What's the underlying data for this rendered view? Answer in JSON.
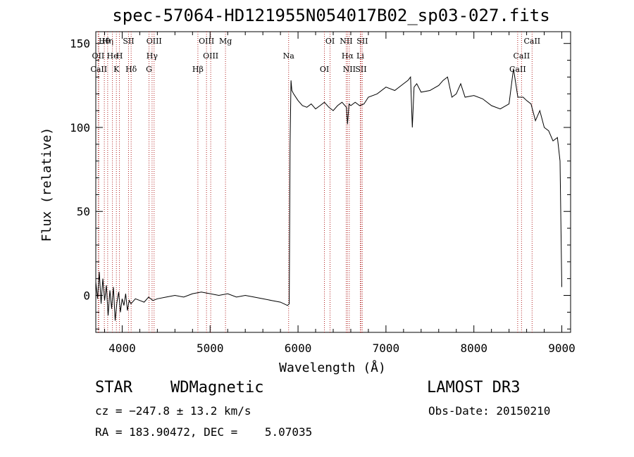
{
  "chart_data": {
    "type": "line",
    "title": "spec-57064-HD121955N054017B02_sp03-027.fits",
    "xlabel": "Wavelength (Å)",
    "ylabel": "Flux (relative)",
    "xlim": [
      3700,
      9100
    ],
    "ylim": [
      -22,
      157
    ],
    "x_ticks": [
      4000,
      5000,
      6000,
      7000,
      8000,
      9000
    ],
    "y_ticks": [
      0,
      50,
      100,
      150
    ],
    "grid": false,
    "series": [
      {
        "x": [
          3700,
          3720,
          3740,
          3760,
          3780,
          3800,
          3820,
          3840,
          3860,
          3880,
          3900,
          3920,
          3940,
          3960,
          3980,
          4000,
          4020,
          4040,
          4060,
          4080,
          4100,
          4150,
          4200,
          4250,
          4300,
          4350,
          4400,
          4500,
          4600,
          4700,
          4800,
          4900,
          5000,
          5100,
          5200,
          5300,
          5400,
          5500,
          5600,
          5700,
          5800,
          5880,
          5900,
          5910,
          5920,
          5930,
          5950,
          6000,
          6050,
          6100,
          6150,
          6200,
          6250,
          6300,
          6350,
          6400,
          6450,
          6500,
          6550,
          6563,
          6580,
          6600,
          6650,
          6700,
          6750,
          6800,
          6900,
          7000,
          7100,
          7200,
          7250,
          7280,
          7300,
          7320,
          7350,
          7400,
          7500,
          7600,
          7650,
          7700,
          7750,
          7800,
          7850,
          7900,
          8000,
          8100,
          8200,
          8300,
          8400,
          8450,
          8500,
          8540,
          8560,
          8600,
          8650,
          8700,
          8750,
          8800,
          8850,
          8900,
          8950,
          8980,
          9000
        ],
        "y": [
          8,
          -2,
          14,
          -5,
          10,
          -3,
          6,
          -12,
          3,
          -8,
          5,
          -15,
          -4,
          2,
          -10,
          -2,
          -6,
          1,
          -9,
          -3,
          -5,
          -2,
          -3,
          -4,
          -1,
          -3,
          -2,
          -1,
          0,
          -1,
          1,
          2,
          1,
          0,
          1,
          -1,
          0,
          -1,
          -2,
          -3,
          -4,
          -6,
          -5,
          90,
          128,
          122,
          120,
          116,
          113,
          112,
          114,
          111,
          113,
          115,
          112,
          110,
          113,
          115,
          112,
          102,
          114,
          113,
          115,
          113,
          114,
          118,
          120,
          124,
          122,
          126,
          128,
          130,
          100,
          124,
          126,
          121,
          122,
          125,
          128,
          130,
          118,
          120,
          126,
          118,
          119,
          117,
          113,
          111,
          114,
          135,
          118,
          118,
          118,
          116,
          114,
          104,
          110,
          100,
          98,
          92,
          94,
          80,
          5
        ],
        "color": "#000000"
      }
    ],
    "lines": [
      {
        "label": "Hθ",
        "x": 3797
      },
      {
        "label": "OII",
        "x": 3727
      },
      {
        "label": "CaII",
        "x": 3734
      },
      {
        "label": "Hη",
        "x": 3835
      },
      {
        "label": "He",
        "x": 3889
      },
      {
        "label": "K",
        "x": 3934
      },
      {
        "label": "SII",
        "x": 4072
      },
      {
        "label": "H",
        "x": 3969
      },
      {
        "label": "Hδ",
        "x": 4102
      },
      {
        "label": "OIII",
        "x": 4363
      },
      {
        "label": "Hγ",
        "x": 4340
      },
      {
        "label": "G",
        "x": 4305
      },
      {
        "label": "OIII",
        "x": 4959
      },
      {
        "label": "OIII",
        "x": 5007
      },
      {
        "label": "Hβ",
        "x": 4861
      },
      {
        "label": "Mg",
        "x": 5175
      },
      {
        "label": "Na",
        "x": 5893
      },
      {
        "label": "OI",
        "x": 6300
      },
      {
        "label": "OI",
        "x": 6364
      },
      {
        "label": "Hα",
        "x": 6563
      },
      {
        "label": "SII",
        "x": 6716
      },
      {
        "label": "NII",
        "x": 6548
      },
      {
        "label": "Li",
        "x": 6708
      },
      {
        "label": "NII",
        "x": 6583
      },
      {
        "label": "SII",
        "x": 6731
      },
      {
        "label": "CaII",
        "x": 8542
      },
      {
        "label": "CaII",
        "x": 8498
      },
      {
        "label": "CaII",
        "x": 8662
      }
    ]
  },
  "footer": {
    "object_type": "STAR",
    "subclass": "WDMagnetic",
    "survey": "LAMOST DR3",
    "cz": "cz = −247.8 ± 13.2 km/s",
    "obs_date": "Obs-Date: 20150210",
    "radec": "RA = 183.90472, DEC =    5.07035"
  }
}
